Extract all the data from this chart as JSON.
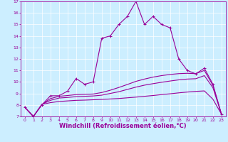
{
  "xlabel": "Windchill (Refroidissement éolien,°C)",
  "background_color": "#cceeff",
  "line_color": "#990099",
  "xlim": [
    -0.5,
    23.5
  ],
  "ylim": [
    7,
    17
  ],
  "yticks": [
    7,
    8,
    9,
    10,
    11,
    12,
    13,
    14,
    15,
    16,
    17
  ],
  "xticks": [
    0,
    1,
    2,
    3,
    4,
    5,
    6,
    7,
    8,
    9,
    10,
    11,
    12,
    13,
    14,
    15,
    16,
    17,
    18,
    19,
    20,
    21,
    22,
    23
  ],
  "series1_x": [
    0,
    1,
    2,
    3,
    4,
    5,
    6,
    7,
    8,
    9,
    10,
    11,
    12,
    13,
    14,
    15,
    16,
    17,
    18,
    19,
    20,
    21,
    22,
    23
  ],
  "series1_y": [
    7.8,
    7.0,
    8.0,
    8.8,
    8.8,
    9.2,
    10.3,
    9.8,
    10.0,
    13.8,
    14.0,
    15.0,
    15.7,
    17.0,
    15.0,
    15.7,
    15.0,
    14.7,
    12.0,
    11.0,
    10.7,
    11.2,
    9.8,
    7.2
  ],
  "series2_x": [
    0,
    1,
    2,
    3,
    4,
    5,
    6,
    7,
    8,
    9,
    10,
    11,
    12,
    13,
    14,
    15,
    16,
    17,
    18,
    19,
    20,
    21,
    22,
    23
  ],
  "series2_y": [
    7.8,
    7.0,
    8.05,
    8.2,
    8.3,
    8.35,
    8.4,
    8.42,
    8.45,
    8.48,
    8.52,
    8.56,
    8.62,
    8.68,
    8.75,
    8.82,
    8.9,
    8.97,
    9.05,
    9.12,
    9.18,
    9.22,
    8.5,
    7.2
  ],
  "series3_x": [
    0,
    1,
    2,
    3,
    4,
    5,
    6,
    7,
    8,
    9,
    10,
    11,
    12,
    13,
    14,
    15,
    16,
    17,
    18,
    19,
    20,
    21,
    22,
    23
  ],
  "series3_y": [
    7.8,
    7.0,
    8.05,
    8.4,
    8.6,
    8.65,
    8.72,
    8.75,
    8.78,
    8.85,
    9.0,
    9.15,
    9.35,
    9.55,
    9.72,
    9.85,
    9.97,
    10.08,
    10.18,
    10.25,
    10.28,
    10.55,
    9.5,
    7.2
  ],
  "series4_x": [
    0,
    1,
    2,
    3,
    4,
    5,
    6,
    7,
    8,
    9,
    10,
    11,
    12,
    13,
    14,
    15,
    16,
    17,
    18,
    19,
    20,
    21,
    22,
    23
  ],
  "series4_y": [
    7.8,
    7.0,
    8.05,
    8.55,
    8.75,
    8.82,
    8.9,
    8.92,
    8.95,
    9.08,
    9.28,
    9.52,
    9.78,
    10.05,
    10.25,
    10.42,
    10.55,
    10.65,
    10.72,
    10.75,
    10.72,
    11.0,
    9.7,
    7.2
  ],
  "marker_size": 3.5,
  "line_width": 0.8,
  "tick_fontsize": 4.5,
  "xlabel_fontsize": 6.0
}
